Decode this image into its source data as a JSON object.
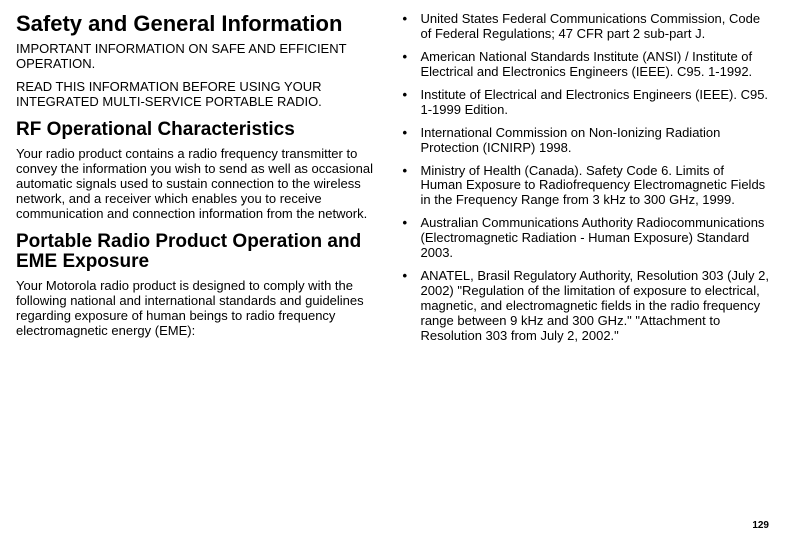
{
  "left": {
    "h1": "Safety and General Information",
    "p1": "IMPORTANT INFORMATION ON SAFE AND EFFICIENT OPERATION.",
    "p2": "READ THIS INFORMATION BEFORE USING YOUR INTEGRATED MULTI-SERVICE PORTABLE RADIO.",
    "h2a": "RF Operational Characteristics",
    "p3": "Your radio product contains a radio frequency transmitter to convey the information you wish to send as well as occasional automatic signals used to sustain connection to the wireless network, and a receiver which enables you to receive communication and connection information from the network.",
    "h2b": "Portable Radio Product Operation and EME Exposure",
    "p4": "Your Motorola radio product is designed to comply with the following national and international standards and guidelines regarding exposure of human beings to radio frequency electromagnetic energy (EME):"
  },
  "right": {
    "items": [
      "United States Federal Communications Commission, Code of Federal Regulations; 47 CFR part 2 sub-part J.",
      "American National Standards Institute (ANSI) / Institute of Electrical and Electronics Engineers (IEEE). C95. 1-1992.",
      "Institute of Electrical and Electronics Engineers (IEEE). C95. 1-1999 Edition.",
      "International Commission on Non-Ionizing Radiation Protection (ICNIRP) 1998.",
      "Ministry of Health (Canada). Safety Code 6. Limits of Human Exposure to Radiofrequency Electromagnetic Fields in the Frequency Range from 3 kHz to 300 GHz, 1999.",
      "Australian Communications Authority Radiocommunications (Electromagnetic Radiation - Human Exposure) Standard 2003.",
      "ANATEL, Brasil Regulatory Authority, Resolution 303 (July 2, 2002) \"Regulation of the limitation of exposure to electrical, magnetic, and electromagnetic fields in the radio frequency range between 9 kHz and 300 GHz.\" \"Attachment to Resolution 303 from July 2, 2002.\""
    ]
  },
  "page_number": "129"
}
